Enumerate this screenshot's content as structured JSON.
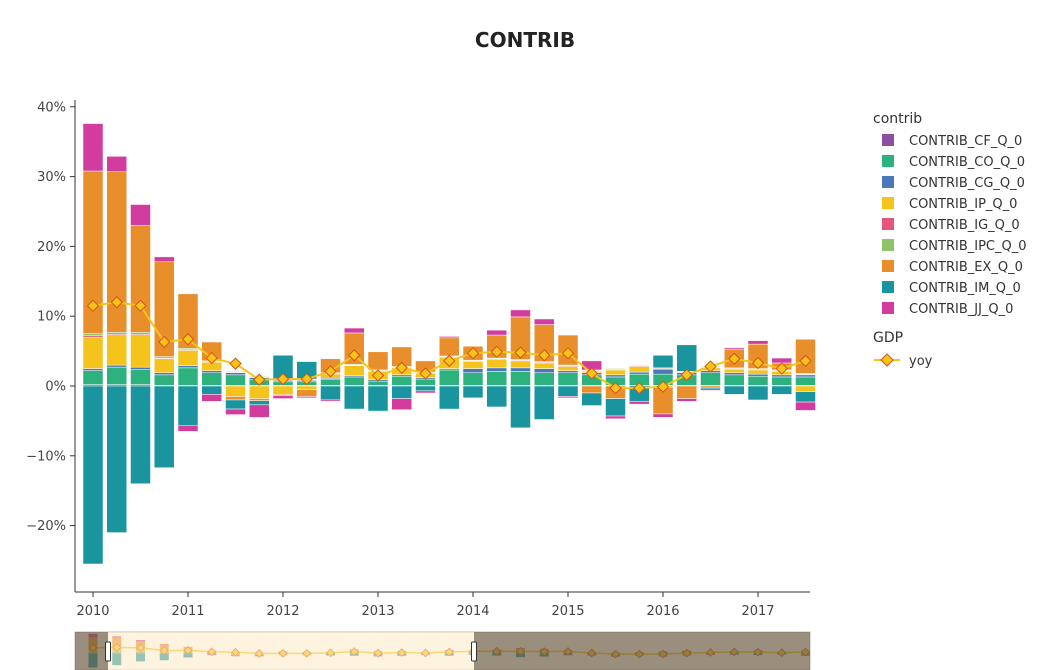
{
  "chart_data": {
    "type": "bar",
    "title": "CONTRIB",
    "xlabel": "",
    "ylabel": "",
    "barmode": "relative",
    "x": [
      "2010Q1",
      "2010Q2",
      "2010Q3",
      "2010Q4",
      "2011Q1",
      "2011Q2",
      "2011Q3",
      "2011Q4",
      "2012Q1",
      "2012Q2",
      "2012Q3",
      "2012Q4",
      "2013Q1",
      "2013Q2",
      "2013Q3",
      "2013Q4",
      "2014Q1",
      "2014Q2",
      "2014Q3",
      "2014Q4",
      "2015Q1",
      "2015Q2",
      "2015Q3",
      "2015Q4",
      "2016Q1",
      "2016Q2",
      "2016Q3",
      "2016Q4",
      "2017Q1",
      "2017Q2",
      "2017Q3"
    ],
    "x_ticks": [
      "2010",
      "2011",
      "2012",
      "2013",
      "2014",
      "2015",
      "2016",
      "2017"
    ],
    "y_ticks": [
      -20,
      -10,
      0,
      10,
      20,
      30,
      40
    ],
    "y_tick_labels": [
      "−20%",
      "−10%",
      "0%",
      "10%",
      "20%",
      "30%",
      "40%"
    ],
    "ylim": [
      -30,
      41
    ],
    "legend_placement": "right",
    "legend_groups": [
      {
        "title": "contrib",
        "entries": [
          "CONTRIB_CF_Q_0",
          "CONTRIB_CO_Q_0",
          "CONTRIB_CG_Q_0",
          "CONTRIB_IP_Q_0",
          "CONTRIB_IG_Q_0",
          "CONTRIB_IPC_Q_0",
          "CONTRIB_EX_Q_0",
          "CONTRIB_IM_Q_0",
          "CONTRIB_JJ_Q_0"
        ]
      },
      {
        "title": "GDP",
        "entries": [
          "yoy"
        ]
      }
    ],
    "series": [
      {
        "name": "CONTRIB_CF_Q_0",
        "color": "#8c4fa2",
        "values": [
          0.2,
          0.2,
          0.2,
          0.1,
          0.1,
          0.1,
          0.1,
          0.1,
          0.1,
          0.1,
          0.1,
          0.1,
          0.1,
          0.1,
          0.1,
          0.1,
          0.1,
          0.1,
          0.1,
          0.1,
          0.1,
          0.1,
          0.1,
          0.1,
          0.1,
          0.1,
          0.1,
          0.1,
          0.1,
          0.1,
          0.1
        ]
      },
      {
        "name": "CONTRIB_CO_Q_0",
        "color": "#2db27d",
        "values": [
          2.0,
          2.5,
          2.2,
          1.5,
          2.5,
          1.8,
          1.5,
          0.8,
          0.5,
          0.5,
          0.8,
          1.2,
          0.6,
          1.3,
          0.9,
          2.2,
          1.8,
          2.0,
          2.0,
          1.8,
          1.8,
          1.5,
          1.2,
          1.6,
          1.6,
          1.5,
          1.8,
          1.5,
          1.3,
          1.2,
          1.2
        ]
      },
      {
        "name": "CONTRIB_CG_Q_0",
        "color": "#4b78b8",
        "values": [
          0.3,
          0.3,
          0.3,
          0.3,
          0.3,
          0.3,
          0.3,
          0.3,
          0.2,
          0.2,
          0.2,
          0.2,
          0.2,
          0.2,
          0.2,
          0.2,
          0.6,
          0.5,
          0.5,
          0.6,
          0.3,
          0.3,
          0.3,
          0.3,
          0.7,
          0.3,
          0.3,
          0.3,
          0.3,
          0.3,
          0.3
        ]
      },
      {
        "name": "CONTRIB_IP_Q_0",
        "color": "#f4c31c",
        "values": [
          4.5,
          4.2,
          4.5,
          2.0,
          2.2,
          1.2,
          -1.5,
          -1.8,
          -1.2,
          -0.5,
          0.6,
          1.4,
          1.2,
          1.0,
          0.6,
          1.6,
          1.0,
          1.2,
          1.0,
          0.8,
          0.6,
          0.2,
          0.7,
          0.8,
          -0.2,
          0.0,
          0.4,
          0.5,
          0.6,
          0.5,
          -0.8
        ]
      },
      {
        "name": "CONTRIB_IG_Q_0",
        "color": "#e4567a",
        "values": [
          0.2,
          0.2,
          0.2,
          0.1,
          0.1,
          0.1,
          0.1,
          0.1,
          0.1,
          0.1,
          0.1,
          0.1,
          0.1,
          0.1,
          0.1,
          0.1,
          0.1,
          0.1,
          0.1,
          0.1,
          0.1,
          0.1,
          0.1,
          0.1,
          0.1,
          0.1,
          0.1,
          0.1,
          0.1,
          0.1,
          0.1
        ]
      },
      {
        "name": "CONTRIB_IPC_Q_0",
        "color": "#8fc46a",
        "values": [
          0.3,
          0.3,
          0.3,
          0.2,
          0.2,
          0.1,
          0.1,
          0.1,
          0.1,
          0.1,
          0.1,
          0.1,
          0.1,
          0.1,
          0.1,
          0.1,
          0.1,
          0.1,
          0.1,
          0.1,
          0.1,
          0.1,
          0.1,
          0.1,
          0.1,
          0.1,
          0.1,
          0.1,
          0.1,
          0.1,
          0.1
        ]
      },
      {
        "name": "CONTRIB_EX_Q_0",
        "color": "#e88f2c",
        "values": [
          23.3,
          23.0,
          15.3,
          13.6,
          7.8,
          2.7,
          -0.5,
          -0.3,
          -0.2,
          -1.0,
          2.0,
          4.5,
          2.6,
          2.8,
          1.6,
          2.6,
          2.0,
          3.3,
          6.1,
          5.3,
          4.3,
          -1.0,
          -1.8,
          0.0,
          -3.8,
          -1.8,
          -0.3,
          2.7,
          3.5,
          1.0,
          4.9
        ]
      },
      {
        "name": "CONTRIB_IM_Q_0",
        "color": "#1a95a0",
        "values": [
          -25.5,
          -21.0,
          -14.0,
          -11.7,
          -5.7,
          -1.2,
          -1.3,
          -0.6,
          3.4,
          2.5,
          -2.0,
          -3.3,
          -3.6,
          -1.8,
          -0.7,
          -3.3,
          -1.7,
          -3.0,
          -6.0,
          -4.8,
          -1.5,
          -1.8,
          -2.5,
          -2.2,
          1.8,
          3.8,
          -0.3,
          -1.2,
          -2.0,
          -1.2,
          -1.5
        ]
      },
      {
        "name": "CONTRIB_JJ_Q_0",
        "color": "#d33c9f",
        "values": [
          6.8,
          2.2,
          3.0,
          0.7,
          -0.8,
          -1.0,
          -0.8,
          -1.8,
          -0.4,
          -0.2,
          -0.2,
          0.7,
          -0.1,
          -1.6,
          -0.3,
          0.2,
          0.0,
          0.7,
          1.0,
          0.8,
          -0.2,
          1.3,
          -0.4,
          -0.4,
          -0.5,
          -0.4,
          -0.1,
          0.2,
          0.5,
          0.7,
          -1.2
        ]
      }
    ],
    "line": {
      "name": "yoy",
      "group": "GDP",
      "color": "#f4c31c",
      "marker_color": "#f4c31c",
      "marker_edge": "#d9530e",
      "values": [
        11.5,
        12.0,
        11.5,
        6.3,
        6.7,
        4.0,
        3.2,
        0.9,
        1.0,
        1.0,
        2.1,
        4.4,
        1.5,
        2.6,
        1.8,
        3.6,
        4.7,
        4.9,
        4.8,
        4.4,
        4.7,
        1.8,
        -0.3,
        -0.3,
        -0.1,
        1.6,
        2.8,
        3.9,
        3.3,
        2.5,
        3.6
      ]
    },
    "range_slider": {
      "window_start": "2010Q1",
      "window_end": "2014Q1"
    }
  }
}
